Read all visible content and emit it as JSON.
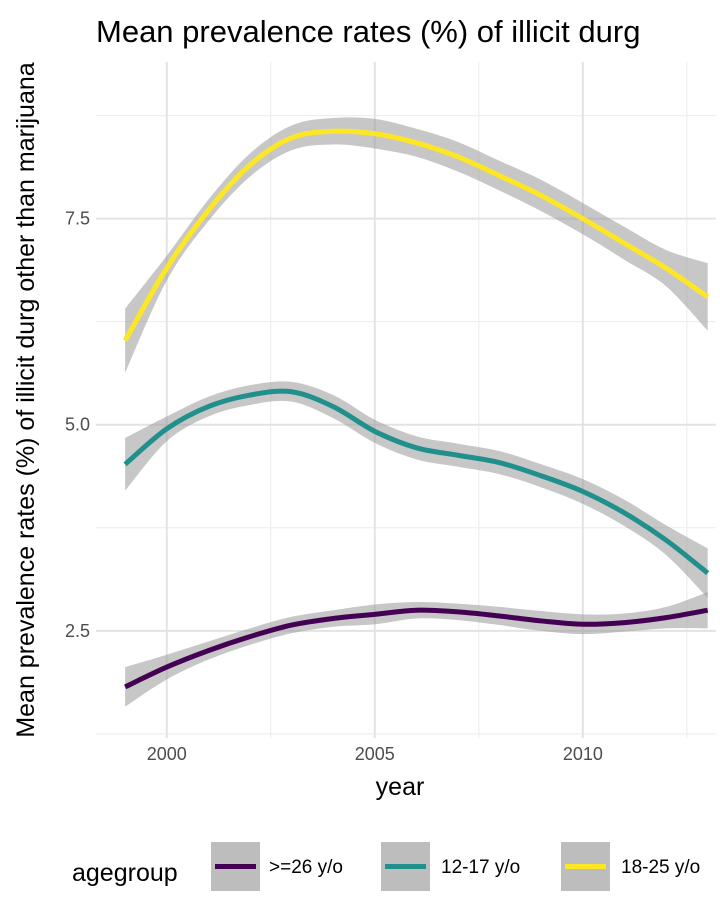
{
  "chart_data": {
    "type": "line",
    "title": "Mean prevalence rates (%) of illicit durg",
    "xlabel": "year",
    "ylabel": "Mean prevalence rates (%) of illicit durg other than marijuana",
    "xlim": [
      1998.3,
      2013.2
    ],
    "ylim": [
      1.2,
      9.4
    ],
    "x_ticks": [
      2000,
      2005,
      2010
    ],
    "x_tick_labels": [
      "2000",
      "2005",
      "2010"
    ],
    "y_ticks": [
      2.5,
      5.0,
      7.5
    ],
    "y_tick_labels": [
      "2.5",
      "5.0",
      "7.5"
    ],
    "grid": true,
    "smoothed_with_confidence_band": true,
    "legend": {
      "title": "agegroup",
      "position": "bottom"
    },
    "series": [
      {
        "name": ">=26 y/o",
        "color": "#440154",
        "x": [
          1999,
          2000,
          2001,
          2002,
          2003,
          2004,
          2005,
          2006,
          2007,
          2008,
          2009,
          2010,
          2011,
          2012,
          2013
        ],
        "y": [
          1.82,
          2.06,
          2.26,
          2.43,
          2.57,
          2.65,
          2.7,
          2.75,
          2.73,
          2.68,
          2.62,
          2.58,
          2.6,
          2.66,
          2.75
        ],
        "ci_lower": [
          1.58,
          1.91,
          2.15,
          2.33,
          2.47,
          2.55,
          2.58,
          2.65,
          2.63,
          2.57,
          2.5,
          2.46,
          2.49,
          2.53,
          2.53
        ],
        "ci_upper": [
          2.06,
          2.21,
          2.37,
          2.53,
          2.67,
          2.75,
          2.82,
          2.85,
          2.83,
          2.79,
          2.74,
          2.7,
          2.71,
          2.79,
          2.97
        ]
      },
      {
        "name": "12-17 y/o",
        "color": "#21908C",
        "x": [
          1999,
          2000,
          2001,
          2002,
          2003,
          2004,
          2005,
          2006,
          2007,
          2008,
          2009,
          2010,
          2011,
          2012,
          2013
        ],
        "y": [
          4.52,
          4.95,
          5.22,
          5.36,
          5.4,
          5.22,
          4.92,
          4.72,
          4.63,
          4.54,
          4.38,
          4.19,
          3.93,
          3.6,
          3.2
        ],
        "ci_lower": [
          4.2,
          4.8,
          5.1,
          5.24,
          5.28,
          5.08,
          4.78,
          4.58,
          4.49,
          4.4,
          4.24,
          4.04,
          3.77,
          3.42,
          2.9
        ],
        "ci_upper": [
          4.84,
          5.1,
          5.34,
          5.48,
          5.52,
          5.36,
          5.06,
          4.86,
          4.77,
          4.68,
          4.52,
          4.34,
          4.09,
          3.78,
          3.5
        ]
      },
      {
        "name": "18-25 y/o",
        "color": "#FDE725",
        "x": [
          1999,
          2000,
          2001,
          2002,
          2003,
          2004,
          2005,
          2006,
          2007,
          2008,
          2009,
          2010,
          2011,
          2012,
          2013
        ],
        "y": [
          6.02,
          6.9,
          7.6,
          8.15,
          8.48,
          8.56,
          8.53,
          8.42,
          8.25,
          8.02,
          7.78,
          7.5,
          7.2,
          6.9,
          6.55
        ],
        "ci_lower": [
          5.63,
          6.75,
          7.47,
          8.01,
          8.33,
          8.4,
          8.35,
          8.25,
          8.07,
          7.84,
          7.59,
          7.31,
          7.0,
          6.68,
          6.14
        ],
        "ci_upper": [
          6.41,
          7.05,
          7.73,
          8.29,
          8.63,
          8.72,
          8.71,
          8.59,
          8.43,
          8.2,
          7.97,
          7.69,
          7.4,
          7.12,
          6.96
        ]
      }
    ]
  }
}
